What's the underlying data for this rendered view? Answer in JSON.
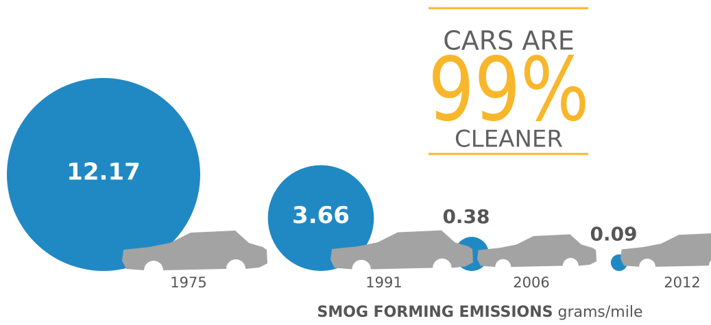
{
  "chart_data": {
    "type": "bubble",
    "header": {
      "top": "CARS ARE",
      "big": "99%",
      "bottom": "CLEANER"
    },
    "categories": [
      "1975",
      "1991",
      "2006",
      "2012"
    ],
    "values": [
      12.17,
      3.66,
      0.38,
      0.09
    ],
    "color": "#2089c4",
    "axis_label": {
      "bold": "SMOG FORMING EMISSIONS",
      "unit": "grams/mile"
    }
  }
}
